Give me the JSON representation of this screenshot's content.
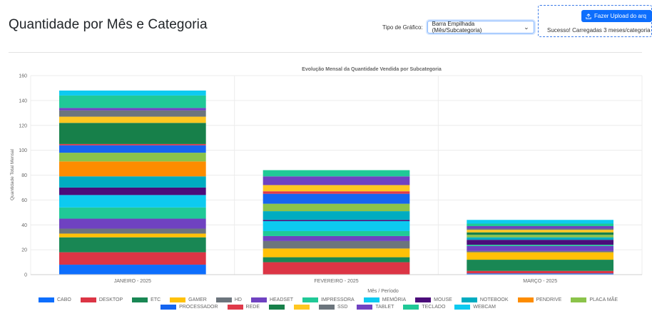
{
  "header": {
    "title": "Quantidade por Mês e Categoria",
    "chart_type_label": "Tipo de Gráfico:",
    "chart_type_value": "Barra Empilhada (Mês/Subcategoria)",
    "upload_button_label": "Fazer Upload do arq",
    "upload_status": "Sucesso! Carregadas 3 meses/categoria"
  },
  "chart_data": {
    "type": "bar",
    "stacked": true,
    "title": "Evolução Mensal da Quantidade Vendida por Subcategoria",
    "xlabel": "Mês / Período",
    "ylabel": "Quantidade Total Mensal",
    "ylim": [
      0,
      160
    ],
    "yticks": [
      0,
      20,
      40,
      60,
      80,
      100,
      120,
      140,
      160
    ],
    "grid": true,
    "legend_position": "bottom",
    "categories": [
      "JANEIRO - 2025",
      "FEVEREIRO - 2025",
      "MARÇO - 2025"
    ],
    "series": [
      {
        "name": "CABO",
        "color": "#0d6efd",
        "values": [
          8,
          0,
          1
        ]
      },
      {
        "name": "DESKTOP",
        "color": "#dc3545",
        "values": [
          10,
          10,
          2
        ]
      },
      {
        "name": "ETC",
        "color": "#198754",
        "values": [
          12,
          4,
          9
        ]
      },
      {
        "name": "GAMER",
        "color": "#ffc107",
        "values": [
          3,
          7,
          6
        ]
      },
      {
        "name": "HD",
        "color": "#6c757d",
        "values": [
          4,
          6,
          1
        ]
      },
      {
        "name": "HEADSET",
        "color": "#6f42c1",
        "values": [
          8,
          4,
          4
        ]
      },
      {
        "name": "IMPRESSORA",
        "color": "#20c997",
        "values": [
          9,
          4,
          1
        ]
      },
      {
        "name": "MEMÓRIA",
        "color": "#0dcaf0",
        "values": [
          10,
          8,
          0
        ]
      },
      {
        "name": "MOUSE",
        "color": "#4b0c7a",
        "values": [
          6,
          1,
          4
        ]
      },
      {
        "name": "NOTEBOOK",
        "color": "#00acc1",
        "values": [
          9,
          7,
          2
        ]
      },
      {
        "name": "PENDRIVE",
        "color": "#fd8c00",
        "values": [
          12,
          0,
          0
        ]
      },
      {
        "name": "PLACA MÃE",
        "color": "#8bc34a",
        "values": [
          7,
          6,
          2
        ]
      },
      {
        "name": "PROCESSADOR",
        "color": "#1565f0",
        "values": [
          6,
          8,
          0
        ]
      },
      {
        "name": "REDE",
        "color": "#e03a4a",
        "values": [
          1,
          2,
          0
        ]
      },
      {
        "name": "",
        "color": "#17804a",
        "values": [
          17,
          0,
          2
        ]
      },
      {
        "name": "",
        "color": "#ffc720",
        "values": [
          5,
          5,
          2
        ]
      },
      {
        "name": "SSD",
        "color": "#6c757d",
        "values": [
          5,
          0,
          1
        ]
      },
      {
        "name": "TABLET",
        "color": "#6f42c1",
        "values": [
          2,
          7,
          2
        ]
      },
      {
        "name": "TECLADO",
        "color": "#20c997",
        "values": [
          10,
          5,
          2
        ]
      },
      {
        "name": "WEBCAM",
        "color": "#0dcaf0",
        "values": [
          4,
          0,
          3
        ]
      }
    ]
  }
}
